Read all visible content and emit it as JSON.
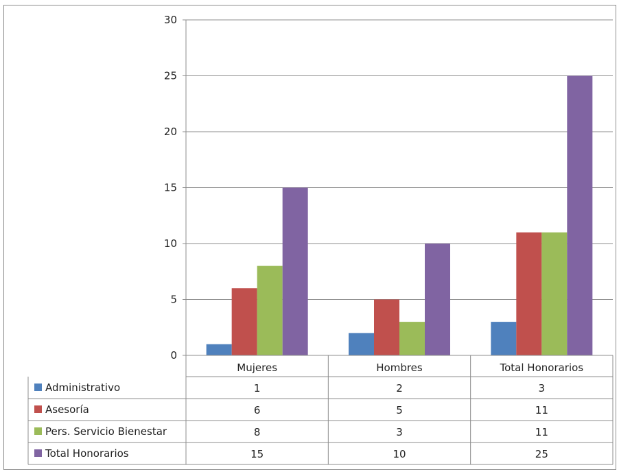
{
  "chart_data": {
    "type": "bar",
    "categories": [
      "Mujeres",
      "Hombres",
      "Total Honorarios"
    ],
    "series": [
      {
        "name": "Administrativo",
        "color": "#4f81bd",
        "values": [
          1,
          2,
          3
        ]
      },
      {
        "name": "Asesoría",
        "color": "#c0504d",
        "values": [
          6,
          5,
          11
        ]
      },
      {
        "name": "Pers. Servicio Bienestar",
        "color": "#9bbb59",
        "values": [
          8,
          3,
          11
        ]
      },
      {
        "name": "Total Honorarios",
        "color": "#8064a2",
        "values": [
          15,
          10,
          25
        ]
      }
    ],
    "yticks": [
      0,
      5,
      10,
      15,
      20,
      25,
      30
    ],
    "ylim": [
      0,
      30
    ],
    "grid": true,
    "legend": "data-table"
  }
}
